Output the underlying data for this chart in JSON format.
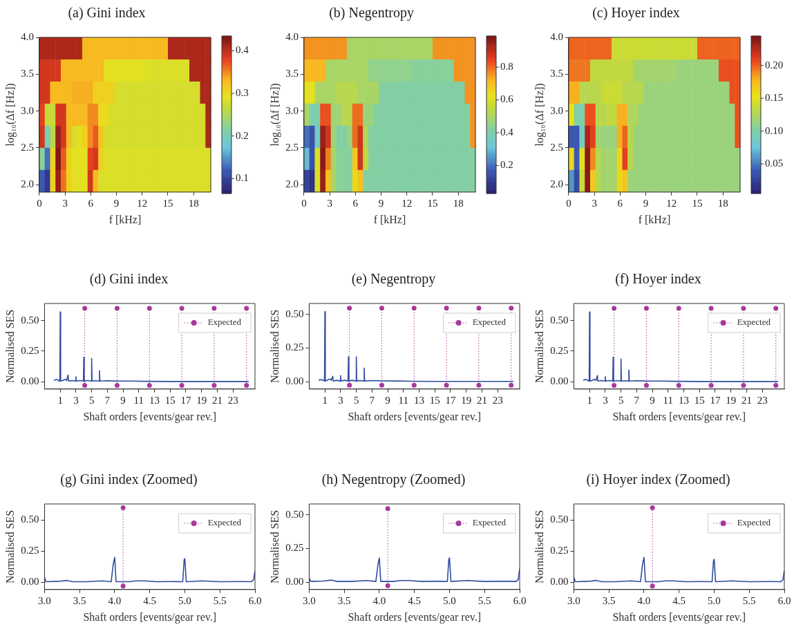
{
  "chart_data": [
    {
      "type": "heatmap",
      "title": "(a) Gini index",
      "xlabel": "f [kHz]",
      "ylabel": "log₁₀(Δf [Hz])",
      "xlim": [
        0,
        20
      ],
      "xticks": [
        0,
        3,
        6,
        9,
        12,
        15,
        18
      ],
      "ylim": [
        1.9,
        4.0
      ],
      "yticks": [
        {
          "value": 2,
          "label": "2.0"
        },
        {
          "value": 2.5,
          "label": "2.5"
        },
        {
          "value": 3,
          "label": "3.0"
        },
        {
          "value": 3.5,
          "label": "3.5"
        },
        {
          "value": 4,
          "label": "4.0"
        }
      ],
      "clim": [
        0.065,
        0.435
      ],
      "cticks": [
        0.1,
        0.2,
        0.3,
        0.4
      ],
      "cells": [
        [
          0.41,
          0.41,
          0.41,
          0.41,
          0.41,
          0.41,
          0.41,
          0.41,
          0.33,
          0.33,
          0.33,
          0.33,
          0.33,
          0.33,
          0.33,
          0.33,
          0.33,
          0.33,
          0.33,
          0.33,
          0.33,
          0.33,
          0.33,
          0.33,
          0.41,
          0.41,
          0.41,
          0.41,
          0.41,
          0.41,
          0.41,
          0.41
        ],
        [
          0.39,
          0.39,
          0.39,
          0.39,
          0.33,
          0.33,
          0.33,
          0.33,
          0.33,
          0.33,
          0.33,
          0.33,
          0.29,
          0.29,
          0.29,
          0.29,
          0.29,
          0.29,
          0.29,
          0.29,
          0.285,
          0.285,
          0.285,
          0.285,
          0.285,
          0.285,
          0.285,
          0.285,
          0.41,
          0.41,
          0.41,
          0.41
        ],
        [
          0.39,
          0.39,
          0.33,
          0.33,
          0.33,
          0.33,
          0.335,
          0.335,
          0.335,
          0.335,
          0.31,
          0.31,
          0.31,
          0.31,
          0.28,
          0.28,
          0.28,
          0.28,
          0.28,
          0.28,
          0.28,
          0.28,
          0.28,
          0.28,
          0.28,
          0.28,
          0.28,
          0.28,
          0.28,
          0.28,
          0.41,
          0.41
        ],
        [
          0.38,
          0.27,
          0.27,
          0.39,
          0.39,
          0.33,
          0.33,
          0.33,
          0.33,
          0.35,
          0.35,
          0.3,
          0.3,
          0.28,
          0.28,
          0.28,
          0.28,
          0.28,
          0.28,
          0.28,
          0.28,
          0.28,
          0.28,
          0.28,
          0.28,
          0.28,
          0.28,
          0.28,
          0.28,
          0.28,
          0.28,
          0.41
        ],
        [
          0.39,
          0.2,
          0.26,
          0.42,
          0.39,
          0.33,
          0.28,
          0.29,
          0.31,
          0.35,
          0.37,
          0.32,
          0.28,
          0.28,
          0.28,
          0.28,
          0.28,
          0.28,
          0.28,
          0.28,
          0.28,
          0.28,
          0.28,
          0.28,
          0.28,
          0.28,
          0.28,
          0.28,
          0.28,
          0.28,
          0.28,
          0.41
        ],
        [
          0.22,
          0.13,
          0.31,
          0.43,
          0.37,
          0.31,
          0.29,
          0.29,
          0.29,
          0.38,
          0.39,
          0.31,
          0.285,
          0.285,
          0.285,
          0.285,
          0.285,
          0.285,
          0.285,
          0.285,
          0.285,
          0.285,
          0.285,
          0.285,
          0.285,
          0.285,
          0.285,
          0.285,
          0.285,
          0.285,
          0.285,
          0.285
        ],
        [
          0.12,
          0.09,
          0.31,
          0.42,
          0.36,
          0.31,
          0.29,
          0.29,
          0.29,
          0.39,
          0.33,
          0.285,
          0.285,
          0.285,
          0.285,
          0.285,
          0.285,
          0.285,
          0.285,
          0.285,
          0.285,
          0.285,
          0.285,
          0.285,
          0.285,
          0.285,
          0.285,
          0.285,
          0.285,
          0.285,
          0.285,
          0.285
        ]
      ]
    },
    {
      "type": "heatmap",
      "title": "(b) Negentropy",
      "xlabel": "f [kHz]",
      "ylabel": "log₁₀(Δf [Hz])",
      "xlim": [
        0,
        20
      ],
      "xticks": [
        0,
        3,
        6,
        9,
        12,
        15,
        18
      ],
      "ylim": [
        1.9,
        4.0
      ],
      "yticks": [
        {
          "value": 2,
          "label": "2.0"
        },
        {
          "value": 2.5,
          "label": "2.5"
        },
        {
          "value": 3,
          "label": "3.0"
        },
        {
          "value": 3.5,
          "label": "3.5"
        },
        {
          "value": 4,
          "label": "4.0"
        }
      ],
      "clim": [
        0.03,
        0.99
      ],
      "cticks": [
        0.2,
        0.4,
        0.6,
        0.8
      ],
      "cells": [
        [
          0.76,
          0.76,
          0.76,
          0.76,
          0.76,
          0.76,
          0.76,
          0.76,
          0.5,
          0.5,
          0.5,
          0.5,
          0.5,
          0.5,
          0.5,
          0.5,
          0.5,
          0.5,
          0.5,
          0.5,
          0.5,
          0.5,
          0.5,
          0.5,
          0.76,
          0.76,
          0.76,
          0.76,
          0.76,
          0.76,
          0.76,
          0.76
        ],
        [
          0.72,
          0.72,
          0.72,
          0.72,
          0.5,
          0.5,
          0.5,
          0.5,
          0.5,
          0.5,
          0.5,
          0.5,
          0.45,
          0.45,
          0.45,
          0.45,
          0.45,
          0.45,
          0.45,
          0.45,
          0.43,
          0.43,
          0.43,
          0.43,
          0.43,
          0.43,
          0.43,
          0.43,
          0.76,
          0.76,
          0.76,
          0.76
        ],
        [
          0.62,
          0.62,
          0.5,
          0.5,
          0.5,
          0.5,
          0.53,
          0.53,
          0.53,
          0.53,
          0.5,
          0.5,
          0.5,
          0.5,
          0.42,
          0.42,
          0.42,
          0.42,
          0.42,
          0.42,
          0.42,
          0.42,
          0.42,
          0.42,
          0.42,
          0.42,
          0.42,
          0.42,
          0.42,
          0.42,
          0.76,
          0.76
        ],
        [
          0.5,
          0.4,
          0.4,
          0.83,
          0.83,
          0.48,
          0.48,
          0.53,
          0.53,
          0.8,
          0.8,
          0.47,
          0.47,
          0.42,
          0.42,
          0.42,
          0.42,
          0.42,
          0.42,
          0.42,
          0.42,
          0.42,
          0.42,
          0.42,
          0.42,
          0.42,
          0.42,
          0.42,
          0.42,
          0.42,
          0.42,
          0.76
        ],
        [
          0.2,
          0.15,
          0.35,
          0.95,
          0.88,
          0.48,
          0.42,
          0.42,
          0.47,
          0.8,
          0.88,
          0.52,
          0.42,
          0.42,
          0.42,
          0.42,
          0.42,
          0.42,
          0.42,
          0.42,
          0.42,
          0.42,
          0.42,
          0.42,
          0.42,
          0.42,
          0.42,
          0.42,
          0.42,
          0.42,
          0.42,
          0.76
        ],
        [
          0.3,
          0.15,
          0.6,
          0.97,
          0.78,
          0.5,
          0.43,
          0.43,
          0.43,
          0.68,
          0.88,
          0.55,
          0.42,
          0.42,
          0.42,
          0.42,
          0.42,
          0.42,
          0.42,
          0.42,
          0.42,
          0.42,
          0.42,
          0.42,
          0.42,
          0.42,
          0.42,
          0.42,
          0.42,
          0.42,
          0.42,
          0.42
        ],
        [
          0.12,
          0.08,
          0.6,
          0.95,
          0.7,
          0.5,
          0.43,
          0.43,
          0.43,
          0.65,
          0.7,
          0.42,
          0.42,
          0.42,
          0.42,
          0.42,
          0.42,
          0.42,
          0.42,
          0.42,
          0.42,
          0.42,
          0.42,
          0.42,
          0.42,
          0.42,
          0.42,
          0.42,
          0.42,
          0.42,
          0.42,
          0.42
        ]
      ]
    },
    {
      "type": "heatmap",
      "title": "(c) Hoyer index",
      "xlabel": "f [kHz]",
      "ylabel": "log₁₀(Δf [Hz])",
      "xlim": [
        0,
        20
      ],
      "xticks": [
        0,
        3,
        6,
        9,
        12,
        15,
        18
      ],
      "ylim": [
        1.9,
        4.0
      ],
      "yticks": [
        {
          "value": 2,
          "label": "2.0"
        },
        {
          "value": 2.5,
          "label": "2.5"
        },
        {
          "value": 3,
          "label": "3.0"
        },
        {
          "value": 3.5,
          "label": "3.5"
        },
        {
          "value": 4,
          "label": "4.0"
        }
      ],
      "clim": [
        0.005,
        0.245
      ],
      "cticks": [
        0.05,
        {
          "value": 0.1,
          "label": "0.10"
        },
        0.15,
        {
          "value": 0.2,
          "label": "0.20"
        }
      ],
      "cells": [
        [
          0.2,
          0.2,
          0.2,
          0.2,
          0.2,
          0.2,
          0.2,
          0.2,
          0.14,
          0.14,
          0.14,
          0.14,
          0.14,
          0.14,
          0.14,
          0.14,
          0.14,
          0.14,
          0.14,
          0.14,
          0.14,
          0.14,
          0.14,
          0.14,
          0.2,
          0.2,
          0.2,
          0.2,
          0.2,
          0.2,
          0.2,
          0.2
        ],
        [
          0.195,
          0.195,
          0.195,
          0.195,
          0.135,
          0.135,
          0.135,
          0.135,
          0.135,
          0.135,
          0.135,
          0.135,
          0.12,
          0.12,
          0.12,
          0.12,
          0.12,
          0.12,
          0.12,
          0.12,
          0.115,
          0.115,
          0.115,
          0.115,
          0.115,
          0.115,
          0.115,
          0.115,
          0.205,
          0.205,
          0.205,
          0.205
        ],
        [
          0.18,
          0.18,
          0.13,
          0.13,
          0.13,
          0.13,
          0.14,
          0.14,
          0.14,
          0.14,
          0.13,
          0.13,
          0.13,
          0.13,
          0.115,
          0.115,
          0.115,
          0.115,
          0.115,
          0.115,
          0.115,
          0.115,
          0.115,
          0.115,
          0.115,
          0.115,
          0.115,
          0.115,
          0.115,
          0.115,
          0.205,
          0.205
        ],
        [
          0.155,
          0.1,
          0.1,
          0.205,
          0.205,
          0.13,
          0.13,
          0.135,
          0.135,
          0.18,
          0.18,
          0.125,
          0.125,
          0.115,
          0.115,
          0.115,
          0.115,
          0.115,
          0.115,
          0.115,
          0.115,
          0.115,
          0.115,
          0.115,
          0.115,
          0.115,
          0.115,
          0.115,
          0.115,
          0.115,
          0.115,
          0.205
        ],
        [
          0.04,
          0.04,
          0.09,
          0.23,
          0.21,
          0.12,
          0.115,
          0.115,
          0.115,
          0.18,
          0.2,
          0.13,
          0.115,
          0.115,
          0.115,
          0.115,
          0.115,
          0.115,
          0.115,
          0.115,
          0.115,
          0.115,
          0.115,
          0.115,
          0.115,
          0.115,
          0.115,
          0.115,
          0.115,
          0.115,
          0.115,
          0.205
        ],
        [
          0.16,
          0.04,
          0.15,
          0.24,
          0.19,
          0.13,
          0.12,
          0.12,
          0.12,
          0.16,
          0.21,
          0.13,
          0.115,
          0.115,
          0.115,
          0.115,
          0.115,
          0.115,
          0.115,
          0.115,
          0.115,
          0.115,
          0.115,
          0.115,
          0.115,
          0.115,
          0.115,
          0.115,
          0.115,
          0.115,
          0.115,
          0.115
        ],
        [
          0.06,
          0.03,
          0.14,
          0.24,
          0.17,
          0.13,
          0.12,
          0.12,
          0.12,
          0.16,
          0.17,
          0.115,
          0.115,
          0.115,
          0.115,
          0.115,
          0.115,
          0.115,
          0.115,
          0.115,
          0.115,
          0.115,
          0.115,
          0.115,
          0.115,
          0.115,
          0.115,
          0.115,
          0.115,
          0.115,
          0.115,
          0.115
        ]
      ]
    },
    {
      "type": "line",
      "title": "(d) Gini index",
      "xlabel": "Shaft orders [events/gear rev.]",
      "ylabel": "Normalised SES",
      "xlim": [
        -1,
        25.8
      ],
      "xticks": [
        1,
        3,
        5,
        7,
        9,
        11,
        13,
        15,
        17,
        19,
        21,
        23
      ],
      "ylim": [
        -0.06,
        0.64
      ],
      "yticks": [
        {
          "value": 0,
          "label": "0.00"
        },
        {
          "value": 0.25,
          "label": "0.25"
        },
        {
          "value": 0.5,
          "label": "0.50"
        }
      ],
      "legend": "top right",
      "series": [
        {
          "color": "#2f4ba0",
          "marker": "none",
          "line_style": "solid",
          "x": [
            0.2,
            0.5,
            0.8,
            0.95,
            1.0,
            1.05,
            1.3,
            1.6,
            1.8,
            2.0,
            2.05,
            2.5,
            2.95,
            3.0,
            3.05,
            3.5,
            3.95,
            4.0,
            4.05,
            4.5,
            4.95,
            5.0,
            5.05,
            5.5,
            5.95,
            6.0,
            6.05,
            7,
            8,
            10,
            12,
            15,
            20,
            25
          ],
          "values": [
            0.01,
            0.02,
            0.01,
            0.005,
            0.57,
            0.005,
            0.01,
            0.02,
            0.01,
            0.055,
            0.005,
            0.01,
            0.005,
            0.04,
            0.005,
            0.01,
            0.005,
            0.2,
            0.005,
            0.01,
            0.005,
            0.19,
            0.005,
            0.008,
            0.005,
            0.09,
            0.005,
            0.008,
            0.006,
            0.005,
            0.003,
            0.002,
            0.002,
            0.002
          ]
        },
        {
          "name": "Expected",
          "color": "#a8389c",
          "marker": "circle",
          "line_style": "dotted",
          "x": [
            4.12,
            4.12,
            null,
            8.24,
            8.24,
            null,
            12.36,
            12.36,
            null,
            16.48,
            16.48,
            null,
            20.6,
            20.6,
            null,
            24.72,
            24.72
          ],
          "values": [
            -0.03,
            0.6,
            null,
            -0.03,
            0.6,
            null,
            -0.03,
            0.6,
            null,
            -0.03,
            0.6,
            null,
            -0.03,
            0.6,
            null,
            -0.03,
            0.6
          ]
        }
      ]
    },
    {
      "type": "line",
      "title": "(e) Negentropy",
      "xlabel": "Shaft orders [events/gear rev.]",
      "ylabel": "Normalised SES",
      "xlim": [
        -1,
        25.8
      ],
      "xticks": [
        1,
        3,
        5,
        7,
        9,
        11,
        13,
        15,
        17,
        19,
        21,
        23
      ],
      "ylim": [
        -0.055,
        0.58
      ],
      "yticks": [
        {
          "value": 0,
          "label": "0.00"
        },
        {
          "value": 0.25,
          "label": "0.25"
        },
        {
          "value": 0.5,
          "label": "0.50"
        }
      ],
      "legend": "top right",
      "series": [
        {
          "color": "#2f4ba0",
          "marker": "none",
          "line_style": "solid",
          "x": [
            0.2,
            0.5,
            0.8,
            0.95,
            1.0,
            1.05,
            1.3,
            1.6,
            1.8,
            2.0,
            2.05,
            2.5,
            2.95,
            3.0,
            3.05,
            3.5,
            3.95,
            4.0,
            4.05,
            4.5,
            4.95,
            5.0,
            5.05,
            5.5,
            5.95,
            6.0,
            6.05,
            7,
            8,
            10,
            12,
            15,
            20,
            25
          ],
          "values": [
            0.01,
            0.015,
            0.01,
            0.005,
            0.52,
            0.005,
            0.01,
            0.02,
            0.01,
            0.04,
            0.005,
            0.01,
            0.005,
            0.045,
            0.005,
            0.01,
            0.005,
            0.185,
            0.005,
            0.01,
            0.005,
            0.185,
            0.005,
            0.008,
            0.005,
            0.1,
            0.005,
            0.008,
            0.006,
            0.005,
            0.003,
            0.002,
            0.002,
            0.002
          ]
        },
        {
          "name": "Expected",
          "color": "#a8389c",
          "marker": "circle",
          "line_style": "dotted",
          "x": [
            4.12,
            4.12,
            null,
            8.24,
            8.24,
            null,
            12.36,
            12.36,
            null,
            16.48,
            16.48,
            null,
            20.6,
            20.6,
            null,
            24.72,
            24.72
          ],
          "values": [
            -0.026,
            0.545,
            null,
            -0.026,
            0.545,
            null,
            -0.026,
            0.545,
            null,
            -0.026,
            0.545,
            null,
            -0.026,
            0.545,
            null,
            -0.026,
            0.545
          ]
        }
      ]
    },
    {
      "type": "line",
      "title": "(f) Hoyer index",
      "xlabel": "Shaft orders [events/gear rev.]",
      "ylabel": "Normalised SES",
      "xlim": [
        -1,
        25.8
      ],
      "xticks": [
        1,
        3,
        5,
        7,
        9,
        11,
        13,
        15,
        17,
        19,
        21,
        23
      ],
      "ylim": [
        -0.06,
        0.64
      ],
      "yticks": [
        {
          "value": 0,
          "label": "0.00"
        },
        {
          "value": 0.25,
          "label": "0.25"
        },
        {
          "value": 0.5,
          "label": "0.50"
        }
      ],
      "legend": "top right",
      "series": [
        {
          "color": "#2f4ba0",
          "marker": "none",
          "line_style": "solid",
          "x": [
            0.2,
            0.5,
            0.8,
            0.95,
            1.0,
            1.05,
            1.3,
            1.6,
            1.8,
            2.0,
            2.05,
            2.5,
            2.95,
            3.0,
            3.05,
            3.5,
            3.95,
            4.0,
            4.05,
            4.5,
            4.95,
            5.0,
            5.05,
            5.5,
            5.95,
            6.0,
            6.05,
            7,
            8,
            10,
            12,
            15,
            20,
            25
          ],
          "values": [
            0.01,
            0.02,
            0.01,
            0.005,
            0.57,
            0.005,
            0.01,
            0.02,
            0.01,
            0.05,
            0.005,
            0.01,
            0.005,
            0.04,
            0.005,
            0.01,
            0.005,
            0.2,
            0.005,
            0.01,
            0.005,
            0.185,
            0.005,
            0.008,
            0.005,
            0.095,
            0.005,
            0.008,
            0.006,
            0.005,
            0.003,
            0.002,
            0.002,
            0.002
          ]
        },
        {
          "name": "Expected",
          "color": "#a8389c",
          "marker": "circle",
          "line_style": "dotted",
          "x": [
            4.12,
            4.12,
            null,
            8.24,
            8.24,
            null,
            12.36,
            12.36,
            null,
            16.48,
            16.48,
            null,
            20.6,
            20.6,
            null,
            24.72,
            24.72
          ],
          "values": [
            -0.03,
            0.6,
            null,
            -0.03,
            0.6,
            null,
            -0.03,
            0.6,
            null,
            -0.03,
            0.6,
            null,
            -0.03,
            0.6,
            null,
            -0.03,
            0.6
          ]
        }
      ]
    },
    {
      "type": "line",
      "title": "(g) Gini index (Zoomed)",
      "xlabel": "Shaft orders [events/gear rev.]",
      "ylabel": "Normalised SES",
      "xlim": [
        3,
        6
      ],
      "xticks": [
        {
          "value": 3,
          "label": "3.0"
        },
        3.5,
        {
          "value": 4,
          "label": "4.0"
        },
        4.5,
        {
          "value": 5,
          "label": "5.0"
        },
        5.5,
        {
          "value": 6,
          "label": "6.0"
        }
      ],
      "ylim": [
        -0.058,
        0.63
      ],
      "yticks": [
        {
          "value": 0,
          "label": "0.00"
        },
        {
          "value": 0.25,
          "label": "0.25"
        },
        {
          "value": 0.5,
          "label": "0.50"
        }
      ],
      "legend": "top right",
      "series": [
        {
          "color": "#2f4ba0",
          "marker": "none",
          "line_style": "solid",
          "x": [
            3.0,
            3.02,
            3.2,
            3.32,
            3.4,
            3.6,
            3.82,
            3.95,
            3.98,
            4.0,
            4.02,
            4.2,
            4.3,
            4.42,
            4.6,
            4.8,
            4.97,
            4.99,
            5.0,
            5.02,
            5.25,
            5.5,
            5.8,
            5.95,
            5.98,
            6.0
          ],
          "values": [
            0.04,
            0.005,
            0.008,
            0.015,
            0.005,
            0.005,
            0.012,
            0.005,
            0.15,
            0.2,
            0.005,
            0.005,
            0.012,
            0.012,
            0.005,
            0.006,
            0.005,
            0.18,
            0.19,
            0.005,
            0.012,
            0.005,
            0.006,
            0.005,
            0.02,
            0.09
          ]
        },
        {
          "name": "Expected",
          "color": "#a8389c",
          "marker": "circle",
          "line_style": "dotted",
          "x": [
            4.12,
            4.12
          ],
          "values": [
            -0.03,
            0.6
          ]
        }
      ]
    },
    {
      "type": "line",
      "title": "(h) Negentropy (Zoomed)",
      "xlabel": "Shaft orders [events/gear rev.]",
      "ylabel": "Normalised SES",
      "xlim": [
        3,
        6
      ],
      "xticks": [
        {
          "value": 3,
          "label": "3.0"
        },
        3.5,
        {
          "value": 4,
          "label": "4.0"
        },
        4.5,
        {
          "value": 5,
          "label": "5.0"
        },
        5.5,
        {
          "value": 6,
          "label": "6.0"
        }
      ],
      "ylim": [
        -0.055,
        0.58
      ],
      "yticks": [
        {
          "value": 0,
          "label": "0.00"
        },
        {
          "value": 0.25,
          "label": "0.25"
        },
        {
          "value": 0.5,
          "label": "0.50"
        }
      ],
      "legend": "top right",
      "series": [
        {
          "color": "#2f4ba0",
          "marker": "none",
          "line_style": "solid",
          "x": [
            3.0,
            3.02,
            3.2,
            3.32,
            3.4,
            3.6,
            3.82,
            3.95,
            3.98,
            4.0,
            4.02,
            4.2,
            4.3,
            4.42,
            4.6,
            4.8,
            4.97,
            4.99,
            5.0,
            5.02,
            5.25,
            5.5,
            5.8,
            5.95,
            5.98,
            6.0
          ],
          "values": [
            0.03,
            0.005,
            0.008,
            0.015,
            0.005,
            0.005,
            0.012,
            0.005,
            0.13,
            0.18,
            0.005,
            0.005,
            0.012,
            0.012,
            0.005,
            0.006,
            0.005,
            0.17,
            0.18,
            0.005,
            0.012,
            0.005,
            0.006,
            0.005,
            0.02,
            0.1
          ]
        },
        {
          "name": "Expected",
          "color": "#a8389c",
          "marker": "circle",
          "line_style": "dotted",
          "x": [
            4.12,
            4.12
          ],
          "values": [
            -0.026,
            0.545
          ]
        }
      ]
    },
    {
      "type": "line",
      "title": "(i) Hoyer index (Zoomed)",
      "xlabel": "Shaft orders [events/gear rev.]",
      "ylabel": "Normalised SES",
      "xlim": [
        3,
        6
      ],
      "xticks": [
        {
          "value": 3,
          "label": "3.0"
        },
        3.5,
        {
          "value": 4,
          "label": "4.0"
        },
        4.5,
        {
          "value": 5,
          "label": "5.0"
        },
        5.5,
        {
          "value": 6,
          "label": "6.0"
        }
      ],
      "ylim": [
        -0.058,
        0.63
      ],
      "yticks": [
        {
          "value": 0,
          "label": "0.00"
        },
        {
          "value": 0.25,
          "label": "0.25"
        },
        {
          "value": 0.5,
          "label": "0.50"
        }
      ],
      "legend": "top right",
      "series": [
        {
          "color": "#2f4ba0",
          "marker": "none",
          "line_style": "solid",
          "x": [
            3.0,
            3.02,
            3.2,
            3.32,
            3.4,
            3.6,
            3.82,
            3.95,
            3.98,
            4.0,
            4.02,
            4.2,
            4.3,
            4.42,
            4.6,
            4.8,
            4.97,
            4.99,
            5.0,
            5.02,
            5.25,
            5.5,
            5.8,
            5.95,
            5.98,
            6.0
          ],
          "values": [
            0.04,
            0.005,
            0.008,
            0.015,
            0.005,
            0.005,
            0.012,
            0.005,
            0.15,
            0.2,
            0.005,
            0.005,
            0.012,
            0.012,
            0.005,
            0.006,
            0.005,
            0.17,
            0.185,
            0.005,
            0.012,
            0.005,
            0.006,
            0.005,
            0.02,
            0.095
          ]
        },
        {
          "name": "Expected",
          "color": "#a8389c",
          "marker": "circle",
          "line_style": "dotted",
          "x": [
            4.12,
            4.12
          ],
          "values": [
            -0.03,
            0.6
          ]
        }
      ]
    }
  ]
}
